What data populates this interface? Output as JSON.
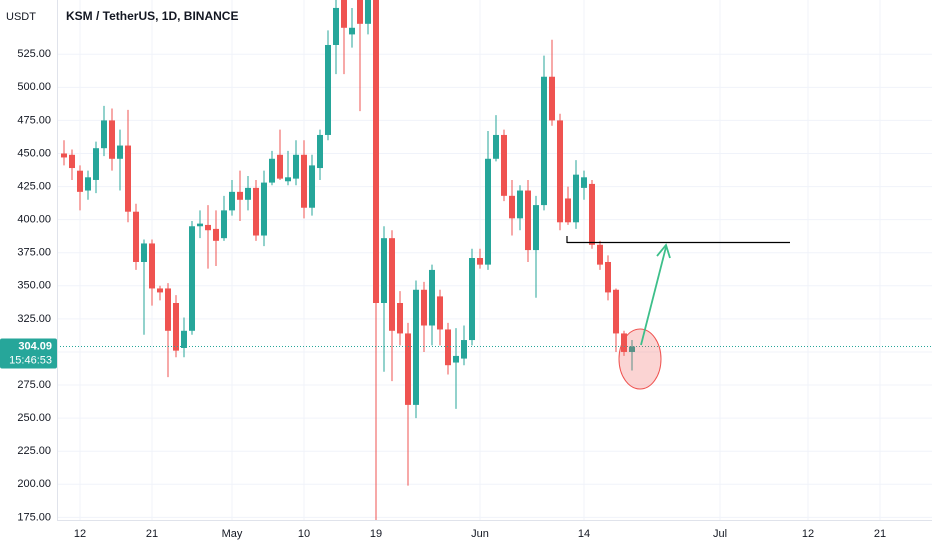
{
  "chart_data": {
    "type": "candlestick",
    "title": "KSM / TetherUS, 1D, BINANCE",
    "y_axis_label": "USDT",
    "up_color": "#26a69a",
    "down_color": "#ef5350",
    "grid": true,
    "x": [
      "04-10",
      "04-11",
      "04-12",
      "04-13",
      "04-14",
      "04-15",
      "04-16",
      "04-17",
      "04-18",
      "04-19",
      "04-20",
      "04-21",
      "04-22",
      "04-23",
      "04-24",
      "04-25",
      "04-26",
      "04-27",
      "04-28",
      "04-29",
      "04-30",
      "05-01",
      "05-02",
      "05-03",
      "05-04",
      "05-05",
      "05-06",
      "05-07",
      "05-08",
      "05-09",
      "05-10",
      "05-11",
      "05-12",
      "05-13",
      "05-14",
      "05-15",
      "05-16",
      "05-17",
      "05-18",
      "05-19",
      "05-20",
      "05-21",
      "05-22",
      "05-23",
      "05-24",
      "05-25",
      "05-26",
      "05-27",
      "05-28",
      "05-29",
      "05-30",
      "05-31",
      "06-01",
      "06-02",
      "06-03",
      "06-04",
      "06-05",
      "06-06",
      "06-07",
      "06-08",
      "06-09",
      "06-10",
      "06-11",
      "06-12",
      "06-13",
      "06-14",
      "06-15",
      "06-16",
      "06-17",
      "06-18",
      "06-19",
      "06-20"
    ],
    "open": [
      450,
      449,
      437,
      422,
      430,
      454,
      475,
      446,
      456,
      406,
      368,
      382,
      348,
      348,
      337,
      303,
      316,
      395,
      396,
      393,
      386,
      407,
      421,
      415,
      424,
      388,
      428,
      449,
      429,
      431,
      449,
      409,
      439,
      464,
      532,
      570,
      540,
      575,
      548,
      575,
      337,
      386,
      337,
      314,
      260,
      347,
      320,
      342,
      317,
      292,
      295,
      309,
      371,
      366,
      446,
      464,
      418,
      401,
      422,
      377,
      411,
      508,
      475,
      416,
      398,
      424,
      427,
      381,
      368,
      347,
      314,
      300
    ],
    "high": [
      460,
      453,
      441,
      437,
      459,
      486,
      484,
      468,
      483,
      412,
      385,
      385,
      350,
      352,
      343,
      326,
      399,
      407,
      411,
      407,
      418,
      430,
      437,
      433,
      430,
      437,
      452,
      468,
      452,
      460,
      460,
      449,
      468,
      543,
      580,
      590,
      560,
      595,
      590,
      600,
      395,
      392,
      346,
      322,
      354,
      353,
      366,
      347,
      322,
      318,
      320,
      378,
      378,
      467,
      479,
      468,
      430,
      426,
      430,
      418,
      524,
      536,
      480,
      425,
      445,
      437,
      430,
      384,
      373,
      348,
      316,
      309
    ],
    "low": [
      441,
      430,
      407,
      415,
      420,
      448,
      437,
      422,
      398,
      362,
      313,
      335,
      339,
      281,
      296,
      296,
      313,
      386,
      363,
      365,
      384,
      403,
      399,
      407,
      384,
      380,
      426,
      430,
      426,
      426,
      401,
      403,
      430,
      460,
      510,
      510,
      530,
      482,
      540,
      168,
      285,
      278,
      305,
      199,
      250,
      300,
      305,
      305,
      283,
      257,
      290,
      305,
      363,
      362,
      444,
      414,
      388,
      392,
      368,
      341,
      407,
      471,
      392,
      396,
      393,
      415,
      378,
      362,
      339,
      300,
      297,
      286
    ],
    "close": [
      447,
      439,
      421,
      432,
      454,
      475,
      446,
      456,
      406,
      368,
      382,
      348,
      345,
      316,
      301,
      316,
      395,
      397,
      392,
      384,
      407,
      421,
      415,
      424,
      388,
      428,
      446,
      431,
      432,
      449,
      409,
      441,
      464,
      532,
      560,
      545,
      545,
      548,
      575,
      337,
      386,
      316,
      314,
      260,
      347,
      320,
      362,
      317,
      290,
      297,
      309,
      371,
      366,
      446,
      464,
      418,
      401,
      422,
      377,
      411,
      508,
      475,
      398,
      398,
      434,
      432,
      381,
      366,
      345,
      314,
      300,
      304.09
    ],
    "ylim": [
      173,
      566
    ],
    "yticks": [
      {
        "value": 175,
        "label": "175.00"
      },
      {
        "value": 200,
        "label": "200.00"
      },
      {
        "value": 225,
        "label": "225.00"
      },
      {
        "value": 250,
        "label": "250.00"
      },
      {
        "value": 275,
        "label": "275.00"
      },
      {
        "value": 300,
        "label": "300.00"
      },
      {
        "value": 325,
        "label": "325.00"
      },
      {
        "value": 350,
        "label": "350.00"
      },
      {
        "value": 375,
        "label": "375.00"
      },
      {
        "value": 400,
        "label": "400.00"
      },
      {
        "value": 425,
        "label": "425.00"
      },
      {
        "value": 450,
        "label": "450.00"
      },
      {
        "value": 475,
        "label": "475.00"
      },
      {
        "value": 500,
        "label": "500.00"
      },
      {
        "value": 525,
        "label": "525.00"
      }
    ],
    "xticks": [
      {
        "value": "04-12",
        "label": "12"
      },
      {
        "value": "04-21",
        "label": "21"
      },
      {
        "value": "05-01",
        "label": "May"
      },
      {
        "value": "05-10",
        "label": "10"
      },
      {
        "value": "05-19",
        "label": "19"
      },
      {
        "value": "06-01",
        "label": "Jun"
      },
      {
        "value": "06-14",
        "label": "14"
      },
      {
        "value": "07-01",
        "label": "Jul"
      },
      {
        "value": "07-12",
        "label": "12"
      },
      {
        "value": "07-21",
        "label": "21"
      }
    ],
    "last_price": 304.09,
    "countdown": "15:46:53"
  }
}
